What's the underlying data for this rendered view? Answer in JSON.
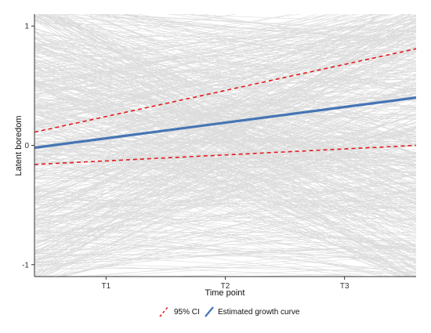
{
  "chart_data": {
    "type": "line",
    "xlabel": "Time point",
    "ylabel": "Latent boredom",
    "x_ticks": [
      "T1",
      "T2",
      "T3"
    ],
    "x_tick_values": [
      1,
      2,
      3
    ],
    "xlim": [
      0.4,
      3.6
    ],
    "y_ticks": [
      "-1",
      "0",
      "1"
    ],
    "y_tick_values": [
      -1,
      0,
      1
    ],
    "ylim": [
      -1.1,
      1.1
    ],
    "grid": false,
    "individual_trajectories": {
      "count": 600,
      "color": "#808080",
      "description": "many individual latent trajectories"
    },
    "series": [
      {
        "name": "95% CI",
        "style": "dashed",
        "color": "#e31a1c",
        "x": [
          0.4,
          3.6
        ],
        "y": [
          0.11,
          0.81
        ]
      },
      {
        "name": "95% CI",
        "style": "dashed",
        "color": "#e31a1c",
        "x": [
          0.4,
          3.6
        ],
        "y": [
          -0.16,
          0.0
        ]
      },
      {
        "name": "Estimated growth curve",
        "style": "solid",
        "color": "#4575b4",
        "x": [
          0.4,
          3.6
        ],
        "y": [
          -0.02,
          0.4
        ]
      }
    ],
    "legend": {
      "position": "bottom",
      "entries": [
        {
          "label": "95% CI",
          "color": "#e31a1c",
          "style": "dashed"
        },
        {
          "label": "Estimated growth curve",
          "color": "#4575b4",
          "style": "solid"
        }
      ]
    }
  }
}
